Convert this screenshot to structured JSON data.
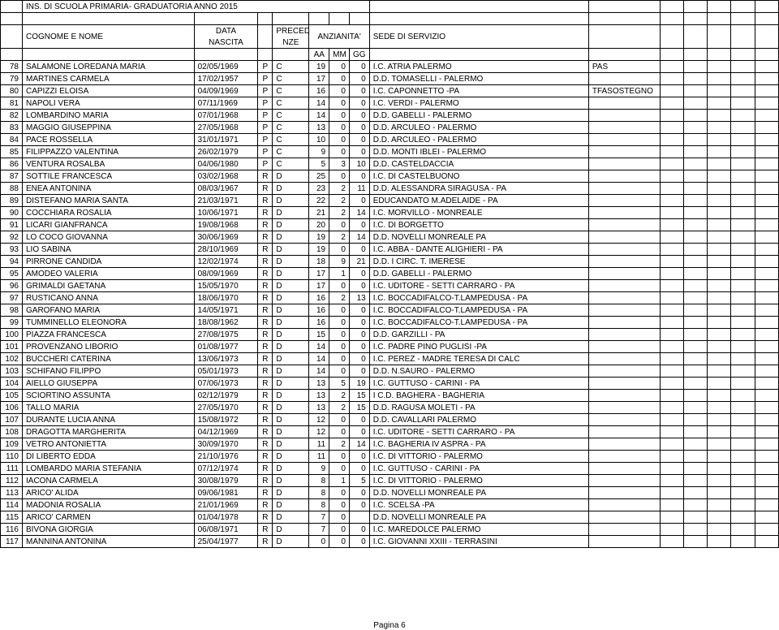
{
  "title": "INS. DI SCUOLA PRIMARIA- GRADUATORIA ANNO 2015",
  "header": {
    "colA_label": "COGNOME E NOME",
    "col_date_top": "DATA",
    "col_date_bot": "NASCITA",
    "col_prec_top": "PRECEDE",
    "col_prec_bot": "NZE",
    "col_anz": "ANZIANITA'",
    "col_sede": "SEDE DI SERVIZIO",
    "aa": "AA",
    "mm": "MM",
    "gg": "GG"
  },
  "footer": "Pagina 6",
  "rows": [
    {
      "n": "78",
      "name": "SALAMONE LOREDANA MARIA",
      "date": "02/05/1969",
      "p": "P",
      "c": "C",
      "aa": "19",
      "mm": "0",
      "gg": "0",
      "sede": "I.C. ATRIA PALERMO",
      "ext": "PAS"
    },
    {
      "n": "79",
      "name": "MARTINES CARMELA",
      "date": "17/02/1957",
      "p": "P",
      "c": "C",
      "aa": "17",
      "mm": "0",
      "gg": "0",
      "sede": "D.D. TOMASELLI - PALERMO",
      "ext": ""
    },
    {
      "n": "80",
      "name": "CAPIZZI ELOISA",
      "date": "04/09/1969",
      "p": "P",
      "c": "C",
      "aa": "16",
      "mm": "0",
      "gg": "0",
      "sede": "I.C. CAPONNETTO -PA",
      "ext": "TFASOSTEGNO"
    },
    {
      "n": "81",
      "name": "NAPOLI VERA",
      "date": "07/11/1969",
      "p": "P",
      "c": "C",
      "aa": "14",
      "mm": "0",
      "gg": "0",
      "sede": "I.C. VERDI - PALERMO",
      "ext": ""
    },
    {
      "n": "82",
      "name": "LOMBARDINO MARIA",
      "date": "07/01/1968",
      "p": "P",
      "c": "C",
      "aa": "14",
      "mm": "0",
      "gg": "0",
      "sede": "D.D. GABELLI - PALERMO",
      "ext": ""
    },
    {
      "n": "83",
      "name": "MAGGIO GIUSEPPINA",
      "date": "27/05/1968",
      "p": "P",
      "c": "C",
      "aa": "13",
      "mm": "0",
      "gg": "0",
      "sede": "D.D. ARCULEO - PALERMO",
      "ext": ""
    },
    {
      "n": "84",
      "name": "PACE ROSSELLA",
      "date": "31/01/1971",
      "p": "P",
      "c": "C",
      "aa": "10",
      "mm": "0",
      "gg": "0",
      "sede": "D.D. ARCULEO - PALERMO",
      "ext": ""
    },
    {
      "n": "85",
      "name": "FILIPPAZZO VALENTINA",
      "date": "26/02/1979",
      "p": "P",
      "c": "C",
      "aa": "9",
      "mm": "0",
      "gg": "0",
      "sede": "D.D. MONTI IBLEI - PALERMO",
      "ext": ""
    },
    {
      "n": "86",
      "name": "VENTURA ROSALBA",
      "date": "04/06/1980",
      "p": "P",
      "c": "C",
      "aa": "5",
      "mm": "3",
      "gg": "10",
      "sede": "D.D. CASTELDACCIA",
      "ext": ""
    },
    {
      "n": "87",
      "name": "SOTTILE FRANCESCA",
      "date": "03/02/1968",
      "p": "R",
      "c": "D",
      "aa": "25",
      "mm": "0",
      "gg": "0",
      "sede": "I.C. DI CASTELBUONO",
      "ext": ""
    },
    {
      "n": "88",
      "name": "ENEA ANTONINA",
      "date": "08/03/1967",
      "p": "R",
      "c": "D",
      "aa": "23",
      "mm": "2",
      "gg": "11",
      "sede": "D.D. ALESSANDRA SIRAGUSA - PA",
      "ext": ""
    },
    {
      "n": "89",
      "name": "DISTEFANO MARIA SANTA",
      "date": "21/03/1971",
      "p": "R",
      "c": "D",
      "aa": "22",
      "mm": "2",
      "gg": "0",
      "sede": "EDUCANDATO M.ADELAIDE - PA",
      "ext": ""
    },
    {
      "n": "90",
      "name": "COCCHIARA ROSALIA",
      "date": "10/06/1971",
      "p": "R",
      "c": "D",
      "aa": "21",
      "mm": "2",
      "gg": "14",
      "sede": "I.C. MORVILLO - MONREALE",
      "ext": ""
    },
    {
      "n": "91",
      "name": "LICARI GIANFRANCA",
      "date": "19/08/1968",
      "p": "R",
      "c": "D",
      "aa": "20",
      "mm": "0",
      "gg": "0",
      "sede": "I.C. DI BORGETTO",
      "ext": ""
    },
    {
      "n": "92",
      "name": "LO COCO GIOVANNA",
      "date": "30/06/1969",
      "p": "R",
      "c": "D",
      "aa": "19",
      "mm": "2",
      "gg": "14",
      "sede": "D.D. NOVELLI MONREALE PA",
      "ext": ""
    },
    {
      "n": "93",
      "name": "LIO SABINA",
      "date": "28/10/1969",
      "p": "R",
      "c": "D",
      "aa": "19",
      "mm": "0",
      "gg": "0",
      "sede": "I.C. ABBA - DANTE ALIGHIERI - PA",
      "ext": ""
    },
    {
      "n": "94",
      "name": "PIRRONE CANDIDA",
      "date": "12/02/1974",
      "p": "R",
      "c": "D",
      "aa": "18",
      "mm": "9",
      "gg": "21",
      "sede": "D.D. I CIRC. T. IMERESE",
      "ext": ""
    },
    {
      "n": "95",
      "name": "AMODEO VALERIA",
      "date": "08/09/1969",
      "p": "R",
      "c": "D",
      "aa": "17",
      "mm": "1",
      "gg": "0",
      "sede": "D.D. GABELLI - PALERMO",
      "ext": ""
    },
    {
      "n": "96",
      "name": "GRIMALDI GAETANA",
      "date": "15/05/1970",
      "p": "R",
      "c": "D",
      "aa": "17",
      "mm": "0",
      "gg": "0",
      "sede": "I.C. UDITORE - SETTI CARRARO - PA",
      "ext": ""
    },
    {
      "n": "97",
      "name": "RUSTICANO ANNA",
      "date": "18/06/1970",
      "p": "R",
      "c": "D",
      "aa": "16",
      "mm": "2",
      "gg": "13",
      "sede": "I.C. BOCCADIFALCO-T.LAMPEDUSA - PA",
      "ext": ""
    },
    {
      "n": "98",
      "name": "GAROFANO MARIA",
      "date": "14/05/1971",
      "p": "R",
      "c": "D",
      "aa": "16",
      "mm": "0",
      "gg": "0",
      "sede": "I.C. BOCCADIFALCO-T.LAMPEDUSA - PA",
      "ext": ""
    },
    {
      "n": "99",
      "name": "TUMMINELLO ELEONORA",
      "date": "18/08/1962",
      "p": "R",
      "c": "D",
      "aa": "16",
      "mm": "0",
      "gg": "0",
      "sede": "I.C. BOCCADIFALCO-T.LAMPEDUSA - PA",
      "ext": ""
    },
    {
      "n": "100",
      "name": "PIAZZA FRANCESCA",
      "date": "27/08/1975",
      "p": "R",
      "c": "D",
      "aa": "15",
      "mm": "0",
      "gg": "0",
      "sede": "D.D. GARZILLI - PA",
      "ext": ""
    },
    {
      "n": "101",
      "name": "PROVENZANO LIBORIO",
      "date": "01/08/1977",
      "p": "R",
      "c": "D",
      "aa": "14",
      "mm": "0",
      "gg": "0",
      "sede": "I.C. PADRE PINO PUGLISI -PA",
      "ext": ""
    },
    {
      "n": "102",
      "name": "BUCCHERI CATERINA",
      "date": "13/06/1973",
      "p": "R",
      "c": "D",
      "aa": "14",
      "mm": "0",
      "gg": "0",
      "sede": "I.C. PEREZ - MADRE TERESA DI CALC",
      "ext": ""
    },
    {
      "n": "103",
      "name": "SCHIFANO FILIPPO",
      "date": "05/01/1973",
      "p": "R",
      "c": "D",
      "aa": "14",
      "mm": "0",
      "gg": "0",
      "sede": "D.D. N.SAURO - PALERMO",
      "ext": ""
    },
    {
      "n": "104",
      "name": "AIELLO GIUSEPPA",
      "date": "07/06/1973",
      "p": "R",
      "c": "D",
      "aa": "13",
      "mm": "5",
      "gg": "19",
      "sede": "I.C. GUTTUSO - CARINI - PA",
      "ext": ""
    },
    {
      "n": "105",
      "name": "SCIORTINO ASSUNTA",
      "date": "02/12/1979",
      "p": "R",
      "c": "D",
      "aa": "13",
      "mm": "2",
      "gg": "15",
      "sede": "I  C.D. BAGHERA - BAGHERIA",
      "ext": ""
    },
    {
      "n": "106",
      "name": "TALLO MARIA",
      "date": "27/05/1970",
      "p": "R",
      "c": "D",
      "aa": "13",
      "mm": "2",
      "gg": "15",
      "sede": "D.D. RAGUSA MOLETI - PA",
      "ext": ""
    },
    {
      "n": "107",
      "name": "DURANTE LUCIA ANNA",
      "date": "15/08/1972",
      "p": "R",
      "c": "D",
      "aa": "12",
      "mm": "0",
      "gg": "0",
      "sede": "D.D. CAVALLARI PALERMO",
      "ext": ""
    },
    {
      "n": "108",
      "name": "DRAGOTTA MARGHERITA",
      "date": "04/12/1969",
      "p": "R",
      "c": "D",
      "aa": "12",
      "mm": "0",
      "gg": "0",
      "sede": "I.C. UDITORE - SETTI CARRARO - PA",
      "ext": ""
    },
    {
      "n": "109",
      "name": "VETRO ANTONIETTA",
      "date": "30/09/1970",
      "p": "R",
      "c": "D",
      "aa": "11",
      "mm": "2",
      "gg": "14",
      "sede": "I.C. BAGHERIA IV ASPRA - PA",
      "ext": ""
    },
    {
      "n": "110",
      "name": "DI LIBERTO EDDA",
      "date": "21/10/1976",
      "p": "R",
      "c": "D",
      "aa": "11",
      "mm": "0",
      "gg": "0",
      "sede": "I.C. DI VITTORIO - PALERMO",
      "ext": ""
    },
    {
      "n": "111",
      "name": "LOMBARDO MARIA STEFANIA",
      "date": "07/12/1974",
      "p": "R",
      "c": "D",
      "aa": "9",
      "mm": "0",
      "gg": "0",
      "sede": "I.C. GUTTUSO - CARINI - PA",
      "ext": ""
    },
    {
      "n": "112",
      "name": "IACONA CARMELA",
      "date": "30/08/1979",
      "p": "R",
      "c": "D",
      "aa": "8",
      "mm": "1",
      "gg": "5",
      "sede": "I.C. DI VITTORIO - PALERMO",
      "ext": ""
    },
    {
      "n": "113",
      "name": "ARICO' ALIDA",
      "date": "09/06/1981",
      "p": "R",
      "c": "D",
      "aa": "8",
      "mm": "0",
      "gg": "0",
      "sede": "D.D. NOVELLI MONREALE PA",
      "ext": ""
    },
    {
      "n": "114",
      "name": "MADONIA ROSALIA",
      "date": "21/01/1969",
      "p": "R",
      "c": "D",
      "aa": "8",
      "mm": "0",
      "gg": "0",
      "sede": "I.C. SCELSA -PA",
      "ext": ""
    },
    {
      "n": "115",
      "name": "ARICO'  CARMEN",
      "date": "01/04/1978",
      "p": "R",
      "c": "D",
      "aa": "7",
      "mm": "0",
      "gg": "",
      "sede": "D.D. NOVELLI MONREALE PA",
      "ext": ""
    },
    {
      "n": "116",
      "name": "BIVONA GIORGIA",
      "date": "06/08/1971",
      "p": "R",
      "c": "D",
      "aa": "7",
      "mm": "0",
      "gg": "0",
      "sede": "I.C. MAREDOLCE PALERMO",
      "ext": ""
    },
    {
      "n": "117",
      "name": "MANNINA ANTONINA",
      "date": "25/04/1977",
      "p": "R",
      "c": "D",
      "aa": "0",
      "mm": "0",
      "gg": "0",
      "sede": "I.C. GIOVANNI XXIII - TERRASINI",
      "ext": ""
    }
  ]
}
